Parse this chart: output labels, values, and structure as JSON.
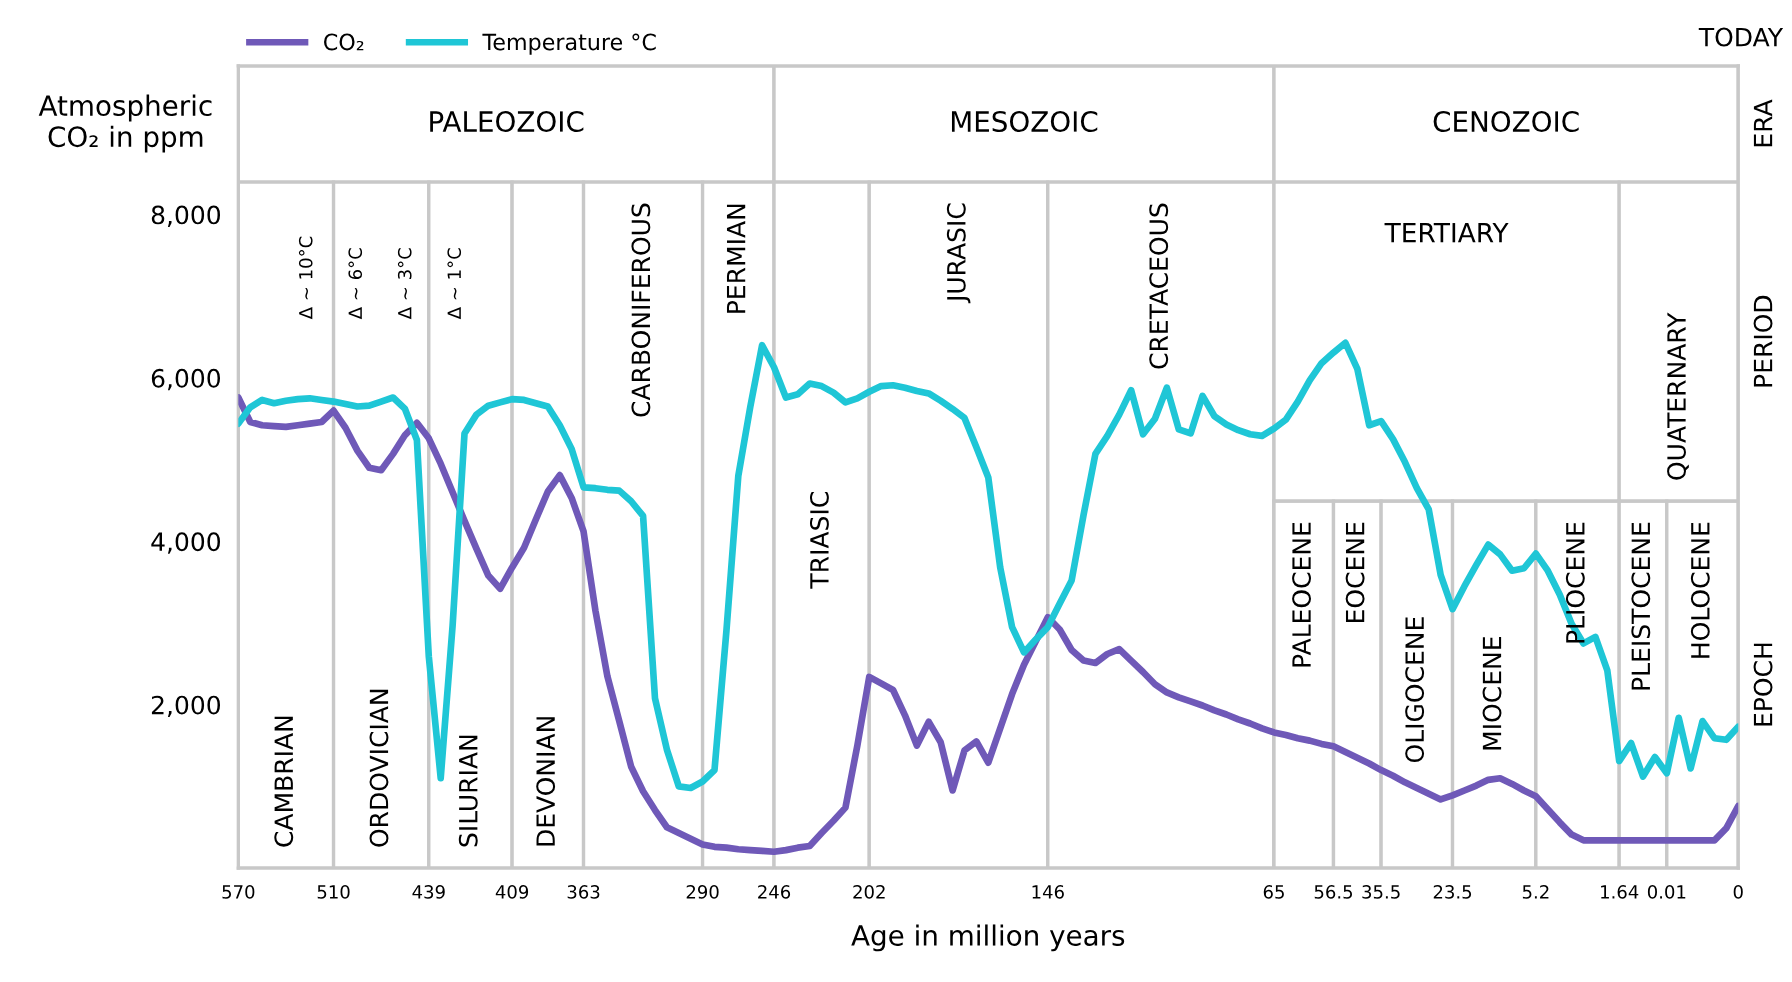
{
  "chart_data": {
    "type": "line",
    "xlabel": "Age in million years",
    "ylabel": "Atmospheric CO₂ in ppm",
    "categories": [
      "570",
      null,
      null,
      null,
      null,
      null,
      null,
      null,
      "510",
      null,
      null,
      null,
      null,
      null,
      null,
      null,
      "439",
      null,
      null,
      null,
      null,
      null,
      null,
      "409",
      null,
      null,
      null,
      null,
      null,
      "363",
      null,
      null,
      null,
      null,
      null,
      null,
      null,
      null,
      null,
      "290",
      null,
      null,
      null,
      null,
      null,
      "246",
      null,
      null,
      null,
      null,
      null,
      null,
      null,
      "202",
      null,
      null,
      null,
      null,
      null,
      null,
      null,
      null,
      null,
      null,
      null,
      null,
      null,
      null,
      "146",
      null,
      null,
      null,
      null,
      null,
      null,
      null,
      null,
      null,
      null,
      null,
      null,
      null,
      null,
      null,
      null,
      null,
      null,
      "65",
      null,
      null,
      null,
      null,
      "56.5",
      null,
      null,
      null,
      "35.5",
      null,
      null,
      null,
      null,
      null,
      "23.5",
      null,
      null,
      null,
      null,
      null,
      null,
      "5.2",
      null,
      null,
      null,
      null,
      null,
      null,
      "1.64",
      null,
      null,
      null,
      "0.01",
      null,
      null,
      null,
      null,
      null,
      "0"
    ],
    "ylim": [
      0,
      9820
    ],
    "yticks": [
      {
        "value": 2000,
        "label": "2,000"
      },
      {
        "value": 4000,
        "label": "4,000"
      },
      {
        "value": 6000,
        "label": "6,000"
      },
      {
        "value": 8000,
        "label": "8,000"
      }
    ],
    "legend": "top left",
    "series": [
      {
        "name": "CO₂",
        "color": "#6f59b8",
        "values": [
          5760,
          5460,
          5420,
          5410,
          5400,
          5420,
          5440,
          5460,
          5600,
          5390,
          5110,
          4900,
          4870,
          5070,
          5300,
          5450,
          5260,
          4950,
          4600,
          4250,
          3910,
          3580,
          3420,
          3680,
          3920,
          4270,
          4610,
          4810,
          4530,
          4120,
          3150,
          2350,
          1800,
          1240,
          940,
          710,
          500,
          430,
          360,
          290,
          260,
          250,
          230,
          220,
          210,
          200,
          220,
          250,
          270,
          430,
          580,
          740,
          1500,
          2340,
          2260,
          2180,
          1870,
          1500,
          1790,
          1540,
          950,
          1440,
          1550,
          1290,
          1710,
          2130,
          2490,
          2780,
          3070,
          2920,
          2670,
          2540,
          2510,
          2620,
          2680,
          2540,
          2400,
          2250,
          2150,
          2090,
          2040,
          1990,
          1930,
          1880,
          1820,
          1770,
          1710,
          1660,
          1630,
          1590,
          1560,
          1520,
          1490,
          1420,
          1350,
          1280,
          1200,
          1130,
          1050,
          980,
          910,
          840,
          890,
          950,
          1010,
          1080,
          1100,
          1030,
          950,
          880,
          720,
          560,
          410,
          340,
          340,
          340,
          340,
          340,
          340,
          340,
          340,
          340,
          340,
          340,
          340,
          490,
          760
        ]
      },
      {
        "name": "Temperature °C",
        "color": "#1fc6d6",
        "values": [
          5440,
          5640,
          5730,
          5690,
          5720,
          5740,
          5750,
          5730,
          5710,
          5680,
          5650,
          5660,
          5710,
          5760,
          5620,
          5240,
          2590,
          1100,
          2970,
          5320,
          5550,
          5660,
          5700,
          5740,
          5730,
          5690,
          5650,
          5420,
          5130,
          4660,
          4650,
          4630,
          4620,
          4490,
          4310,
          2080,
          1450,
          1000,
          980,
          1060,
          1200,
          2900,
          4800,
          5640,
          6400,
          6130,
          5760,
          5800,
          5930,
          5900,
          5820,
          5700,
          5750,
          5830,
          5900,
          5910,
          5880,
          5840,
          5810,
          5720,
          5620,
          5510,
          5150,
          4780,
          3680,
          2950,
          2640,
          2800,
          2950,
          3240,
          3520,
          4320,
          5070,
          5290,
          5550,
          5850,
          5310,
          5500,
          5880,
          5370,
          5320,
          5780,
          5530,
          5430,
          5360,
          5310,
          5290,
          5380,
          5490,
          5710,
          5970,
          6180,
          6310,
          6430,
          6110,
          5420,
          5470,
          5250,
          4970,
          4650,
          4390,
          3590,
          3170,
          3450,
          3710,
          3960,
          3840,
          3640,
          3670,
          3850,
          3640,
          3350,
          2990,
          2750,
          2830,
          2420,
          1310,
          1530,
          1120,
          1360,
          1160,
          1840,
          1220,
          1800,
          1590,
          1570,
          1730
        ]
      }
    ],
    "bands": [
      {
        "axis": "x",
        "from": "570",
        "to": "246",
        "label": "PALEOZOIC",
        "color": "#ffffff"
      },
      {
        "axis": "x",
        "from": "246",
        "to": "65",
        "label": "MESOZOIC",
        "color": "#ffffff"
      },
      {
        "axis": "x",
        "from": "65",
        "to": "0",
        "label": "CENOZOIC",
        "color": "#ffffff"
      },
      {
        "axis": "x",
        "from": "570",
        "to": "510",
        "label": "CAMBRIAN",
        "color": "#ffffff"
      },
      {
        "axis": "x",
        "from": "510",
        "to": "439",
        "label": "ORDOVICIAN",
        "color": "#ffffff"
      },
      {
        "axis": "x",
        "from": "439",
        "to": "409",
        "label": "SILURIAN",
        "color": "#ffffff"
      },
      {
        "axis": "x",
        "from": "409",
        "to": "363",
        "label": "DEVONIAN",
        "color": "#ffffff"
      },
      {
        "axis": "x",
        "from": "363",
        "to": "290",
        "label": "CARBONIFEROUS",
        "color": "#ffffff"
      },
      {
        "axis": "x",
        "from": "290",
        "to": "246",
        "label": "PERMIAN",
        "color": "#ffffff"
      },
      {
        "axis": "x",
        "from": "246",
        "to": "202",
        "label": "TRIASIC",
        "color": "#ffffff"
      },
      {
        "axis": "x",
        "from": "202",
        "to": "146",
        "label": "JURASIC",
        "color": "#ffffff"
      },
      {
        "axis": "x",
        "from": "146",
        "to": "65",
        "label": "CRETACEOUS",
        "color": "#ffffff"
      },
      {
        "axis": "x",
        "from": "65",
        "to": "1.64",
        "label": "TERTIARY",
        "color": "#ffffff"
      },
      {
        "axis": "x",
        "from": "1.64",
        "to": "0",
        "label": "QUATERNARY",
        "color": "#ffffff"
      },
      {
        "axis": "x",
        "from": "65",
        "to": "56.5",
        "label": "PALEOCENE",
        "color": "#ffffff"
      },
      {
        "axis": "x",
        "from": "56.5",
        "to": "35.5",
        "label": "EOCENE",
        "color": "#ffffff"
      },
      {
        "axis": "x",
        "from": "35.5",
        "to": "23.5",
        "label": "OLIGOCENE",
        "color": "#ffffff"
      },
      {
        "axis": "x",
        "from": "23.5",
        "to": "5.2",
        "label": "MIOCENE",
        "color": "#ffffff"
      },
      {
        "axis": "x",
        "from": "5.2",
        "to": "1.64",
        "label": "PLIOCENE",
        "color": "#ffffff"
      },
      {
        "axis": "x",
        "from": "1.64",
        "to": "0.01",
        "label": "PLEISTOCENE",
        "color": "#ffffff"
      },
      {
        "axis": "x",
        "from": "0.01",
        "to": "0",
        "label": "HOLOCENE",
        "color": "#ffffff"
      }
    ],
    "annotations": [
      "Δ ~ 10°C",
      "Δ ~ 6°C",
      "Δ ~ 3°C",
      "Δ ~ 1°C",
      "TODAY",
      "ERA",
      "PERIOD",
      "EPOCH"
    ]
  }
}
